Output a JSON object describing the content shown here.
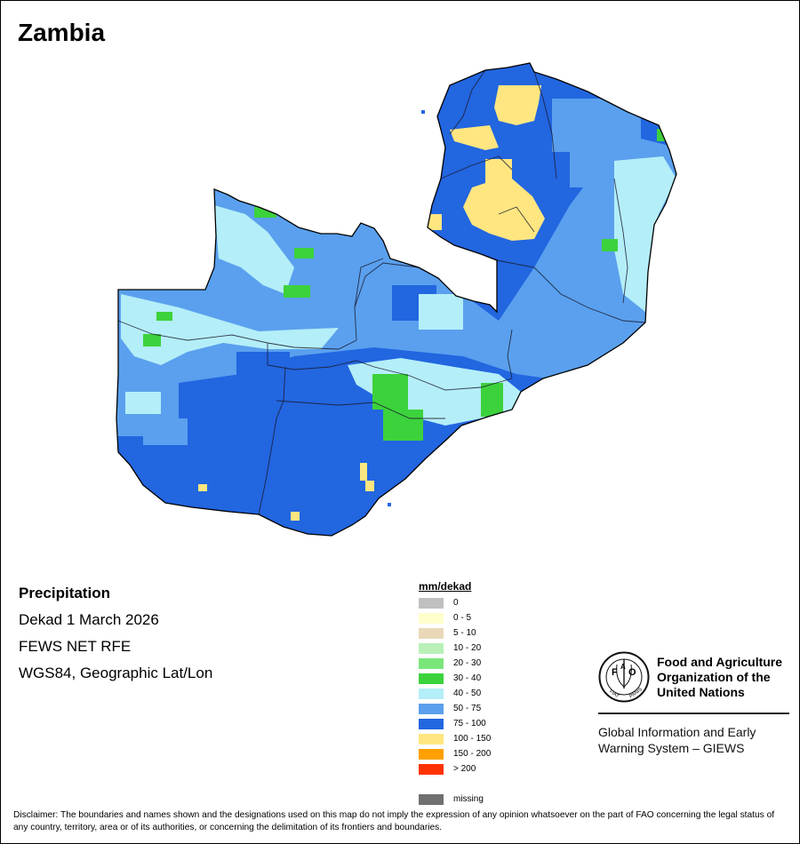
{
  "map": {
    "title": "Zambia",
    "country": "Zambia",
    "variable": "Precipitation",
    "period": "Dekad 1 March 2026",
    "source": "FEWS NET RFE",
    "projection": "WGS84, Geographic Lat/Lon",
    "dominant_class": "75 - 100",
    "regions": [
      {
        "class": "100 - 150",
        "color": "#ffe680",
        "area": "northern highlands"
      },
      {
        "class": "30 - 40",
        "color": "#3cd23c",
        "area": "central-east"
      },
      {
        "class": "40 - 50",
        "color": "#b4eef8",
        "area": "eastern margin"
      },
      {
        "class": "50 - 75",
        "color": "#5aa0ee",
        "area": "northwest and east"
      },
      {
        "class": "75 - 100",
        "color": "#2266e0",
        "area": "south and north"
      }
    ]
  },
  "legend": {
    "unit": "mm/dekad",
    "classes": [
      {
        "label": "0",
        "color": "#c0c0c0"
      },
      {
        "label": "0 - 5",
        "color": "#ffffcc"
      },
      {
        "label": "5 - 10",
        "color": "#e8d8b8"
      },
      {
        "label": "10 - 20",
        "color": "#b8f0b8"
      },
      {
        "label": "20 - 30",
        "color": "#7ae67a"
      },
      {
        "label": "30 - 40",
        "color": "#3cd23c"
      },
      {
        "label": "40 - 50",
        "color": "#b4eef8"
      },
      {
        "label": "50 - 75",
        "color": "#5aa0ee"
      },
      {
        "label": "75 - 100",
        "color": "#2266e0"
      },
      {
        "label": "100 - 150",
        "color": "#ffe680"
      },
      {
        "label": "150 - 200",
        "color": "#ffa000"
      },
      {
        "label": "> 200",
        "color": "#ff3200"
      }
    ],
    "missing": {
      "label": "missing",
      "color": "#707070"
    }
  },
  "logo": {
    "org_lines": [
      "Food and Agriculture",
      "Organization of the",
      "United Nations"
    ],
    "seal_text": "FAO FIAT PANIS",
    "system_lines": [
      "Global Information and Early",
      "Warning System – GIEWS"
    ]
  },
  "disclaimer": "Disclaimer: The boundaries and names shown and the designations used on this map do not imply the expression of any opinion whatsoever on the part of FAO concerning the legal status of any country, territory, area or of its authorities, or concerning the delimitation of its frontiers and boundaries."
}
